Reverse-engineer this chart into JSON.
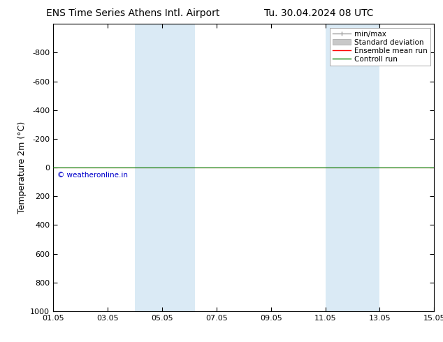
{
  "title_left": "ENS Time Series Athens Intl. Airport",
  "title_right": "Tu. 30.04.2024 08 UTC",
  "ylabel": "Temperature 2m (°C)",
  "ylim_top": -1000,
  "ylim_bottom": 1000,
  "yticks": [
    -800,
    -600,
    -400,
    -200,
    0,
    200,
    400,
    600,
    800,
    1000
  ],
  "xtick_labels": [
    "01.05",
    "03.05",
    "05.05",
    "07.05",
    "09.05",
    "11.05",
    "13.05",
    "15.05"
  ],
  "xtick_positions": [
    1,
    3,
    5,
    7,
    9,
    11,
    13,
    15
  ],
  "xlim": [
    1,
    15
  ],
  "shaded_bands": [
    {
      "x_start": 4.0,
      "x_end": 6.2,
      "color": "#daeaf5"
    },
    {
      "x_start": 11.0,
      "x_end": 13.0,
      "color": "#daeaf5"
    }
  ],
  "control_run_y": 0,
  "ensemble_mean_y": 0,
  "control_run_color": "#008000",
  "ensemble_mean_color": "#ff0000",
  "minmax_color": "#a0a0a0",
  "std_dev_color": "#c8c8c8",
  "watermark": "© weatheronline.in",
  "watermark_color": "#0000cc",
  "background_color": "#ffffff",
  "plot_bg_color": "#ffffff",
  "legend_labels": [
    "min/max",
    "Standard deviation",
    "Ensemble mean run",
    "Controll run"
  ],
  "title_fontsize": 10,
  "axis_label_fontsize": 9,
  "tick_fontsize": 8,
  "legend_fontsize": 7.5
}
